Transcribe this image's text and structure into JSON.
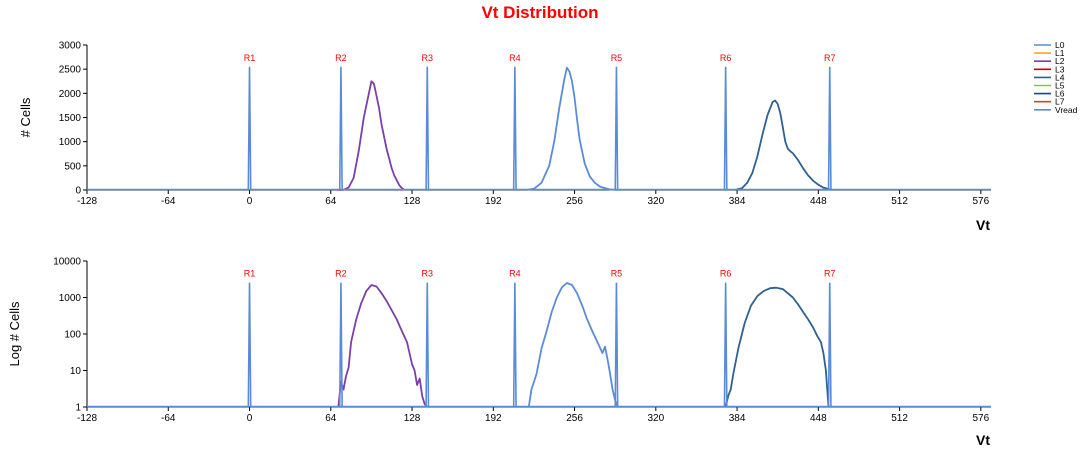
{
  "title": "Vt Distribution",
  "colors": {
    "title": "#ff0000",
    "read_label": "#ff0000",
    "L0": "#5b8bd8",
    "L1": "#f5a623",
    "L2": "#7b3fa8",
    "L3": "#d00000",
    "L4": "#2e6190",
    "L5": "#8cc63f",
    "L6": "#1f3f9f",
    "L7": "#c0501a",
    "Vread": "#5b8bd8"
  },
  "legend": [
    "L0",
    "L1",
    "L2",
    "L3",
    "L4",
    "L5",
    "L6",
    "L7",
    "Vread"
  ],
  "chart_data": [
    {
      "type": "line",
      "title": "Vt Distribution",
      "xlabel": "Vt",
      "ylabel": "# Cells",
      "scale": "linear",
      "xlim": [
        -128,
        584
      ],
      "ylim": [
        0,
        3000
      ],
      "xticks": [
        "-128",
        "-64",
        "0",
        "64",
        "128",
        "192",
        "256",
        "320",
        "384",
        "448",
        "512",
        "576"
      ],
      "yticks": [
        "0",
        "500",
        "1000",
        "1500",
        "2000",
        "2500",
        "3000"
      ],
      "read_levels": [
        {
          "name": "R1",
          "x": 0
        },
        {
          "name": "R2",
          "x": 72
        },
        {
          "name": "R3",
          "x": 140
        },
        {
          "name": "R4",
          "x": 209
        },
        {
          "name": "R5",
          "x": 289
        },
        {
          "name": "R6",
          "x": 375
        },
        {
          "name": "R7",
          "x": 457
        }
      ],
      "read_height": 2550,
      "series": [
        {
          "name": "L2",
          "range": [
            70,
            122
          ],
          "values": [
            [
              70,
              0
            ],
            [
              74,
              5
            ],
            [
              78,
              50
            ],
            [
              82,
              250
            ],
            [
              86,
              800
            ],
            [
              90,
              1500
            ],
            [
              94,
              2000
            ],
            [
              96,
              2250
            ],
            [
              98,
              2200
            ],
            [
              100,
              1950
            ],
            [
              102,
              1700
            ],
            [
              104,
              1350
            ],
            [
              106,
              1100
            ],
            [
              108,
              850
            ],
            [
              110,
              650
            ],
            [
              112,
              450
            ],
            [
              114,
              300
            ],
            [
              116,
              200
            ],
            [
              118,
              100
            ],
            [
              120,
              40
            ],
            [
              122,
              0
            ]
          ]
        },
        {
          "name": "L0",
          "range": [
            218,
            290
          ],
          "values": [
            [
              218,
              0
            ],
            [
              224,
              25
            ],
            [
              230,
              150
            ],
            [
              236,
              500
            ],
            [
              240,
              1000
            ],
            [
              244,
              1700
            ],
            [
              248,
              2300
            ],
            [
              250,
              2530
            ],
            [
              252,
              2450
            ],
            [
              254,
              2250
            ],
            [
              256,
              1900
            ],
            [
              258,
              1450
            ],
            [
              260,
              1050
            ],
            [
              264,
              550
            ],
            [
              268,
              280
            ],
            [
              272,
              150
            ],
            [
              276,
              70
            ],
            [
              280,
              40
            ],
            [
              284,
              10
            ],
            [
              290,
              0
            ]
          ]
        },
        {
          "name": "L4",
          "range": [
            382,
            458
          ],
          "values": [
            [
              382,
              0
            ],
            [
              388,
              40
            ],
            [
              392,
              150
            ],
            [
              396,
              350
            ],
            [
              400,
              700
            ],
            [
              404,
              1150
            ],
            [
              408,
              1550
            ],
            [
              412,
              1820
            ],
            [
              414,
              1850
            ],
            [
              416,
              1780
            ],
            [
              418,
              1600
            ],
            [
              420,
              1300
            ],
            [
              422,
              1000
            ],
            [
              424,
              850
            ],
            [
              426,
              800
            ],
            [
              428,
              760
            ],
            [
              432,
              620
            ],
            [
              436,
              450
            ],
            [
              440,
              300
            ],
            [
              444,
              190
            ],
            [
              448,
              110
            ],
            [
              452,
              50
            ],
            [
              456,
              20
            ],
            [
              458,
              0
            ]
          ]
        }
      ]
    },
    {
      "type": "line",
      "xlabel": "Vt",
      "ylabel": "Log # Cells",
      "scale": "log",
      "xlim": [
        -128,
        584
      ],
      "ylim": [
        1,
        10000
      ],
      "xticks": [
        "-128",
        "-64",
        "0",
        "64",
        "128",
        "192",
        "256",
        "320",
        "384",
        "448",
        "512",
        "576"
      ],
      "yticks": [
        "1",
        "10",
        "100",
        "1000",
        "10000"
      ],
      "read_levels": [
        {
          "name": "R1",
          "x": 0
        },
        {
          "name": "R2",
          "x": 72
        },
        {
          "name": "R3",
          "x": 140
        },
        {
          "name": "R4",
          "x": 209
        },
        {
          "name": "R5",
          "x": 289
        },
        {
          "name": "R6",
          "x": 375
        },
        {
          "name": "R7",
          "x": 457
        }
      ],
      "read_height": 2550,
      "series": [
        {
          "name": "L2",
          "range": [
            70,
            140
          ],
          "values": [
            [
              70,
              1
            ],
            [
              72,
              5
            ],
            [
              74,
              3
            ],
            [
              76,
              7
            ],
            [
              78,
              12
            ],
            [
              80,
              60
            ],
            [
              84,
              250
            ],
            [
              88,
              700
            ],
            [
              92,
              1500
            ],
            [
              96,
              2200
            ],
            [
              100,
              2000
            ],
            [
              104,
              1300
            ],
            [
              108,
              800
            ],
            [
              112,
              450
            ],
            [
              116,
              250
            ],
            [
              120,
              120
            ],
            [
              124,
              60
            ],
            [
              126,
              30
            ],
            [
              128,
              15
            ],
            [
              130,
              10
            ],
            [
              132,
              4
            ],
            [
              134,
              6
            ],
            [
              136,
              2
            ],
            [
              138,
              1.2
            ],
            [
              140,
              1
            ]
          ]
        },
        {
          "name": "L0",
          "range": [
            220,
            295
          ],
          "values": [
            [
              220,
              1
            ],
            [
              222,
              3
            ],
            [
              226,
              8
            ],
            [
              230,
              40
            ],
            [
              234,
              120
            ],
            [
              238,
              400
            ],
            [
              242,
              1000
            ],
            [
              246,
              1900
            ],
            [
              250,
              2500
            ],
            [
              254,
              2200
            ],
            [
              258,
              1300
            ],
            [
              262,
              600
            ],
            [
              266,
              250
            ],
            [
              270,
              120
            ],
            [
              274,
              60
            ],
            [
              278,
              30
            ],
            [
              280,
              45
            ],
            [
              282,
              20
            ],
            [
              284,
              8
            ],
            [
              286,
              3
            ],
            [
              288,
              1.5
            ],
            [
              290,
              1
            ]
          ]
        },
        {
          "name": "L4",
          "range": [
            375,
            456
          ],
          "values": [
            [
              375,
              1
            ],
            [
              377,
              2
            ],
            [
              379,
              3
            ],
            [
              381,
              8
            ],
            [
              385,
              40
            ],
            [
              390,
              200
            ],
            [
              395,
              600
            ],
            [
              400,
              1100
            ],
            [
              405,
              1500
            ],
            [
              410,
              1800
            ],
            [
              415,
              1850
            ],
            [
              420,
              1700
            ],
            [
              424,
              1300
            ],
            [
              428,
              1000
            ],
            [
              432,
              650
            ],
            [
              436,
              400
            ],
            [
              440,
              250
            ],
            [
              444,
              150
            ],
            [
              447,
              90
            ],
            [
              450,
              60
            ],
            [
              452,
              30
            ],
            [
              454,
              10
            ],
            [
              456,
              1
            ]
          ]
        }
      ]
    }
  ]
}
